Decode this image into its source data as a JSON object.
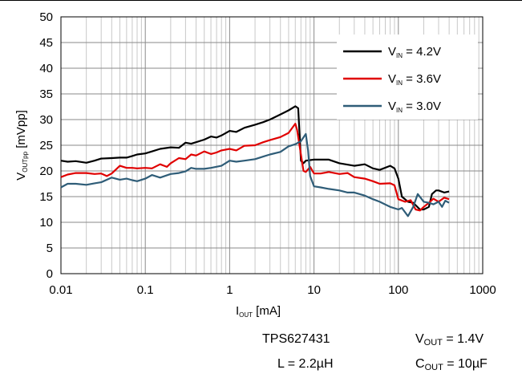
{
  "chart_data": {
    "type": "line",
    "title": "",
    "xlabel": {
      "main": "I",
      "sub": "OUT",
      "unit": " [mA]"
    },
    "ylabel": {
      "main": "V",
      "sub": "OUTpp",
      "unit": " [mVpp]"
    },
    "xscale": "log",
    "xlim": [
      0.01,
      1000
    ],
    "ylim": [
      0,
      50
    ],
    "x_ticks": [
      "0.01",
      "0.1",
      "1",
      "10",
      "100",
      "1000"
    ],
    "y_ticks": [
      "0",
      "5",
      "10",
      "15",
      "20",
      "25",
      "30",
      "35",
      "40",
      "45",
      "50"
    ],
    "grid": true,
    "legend_position": "top-right",
    "series": [
      {
        "name_main": "V",
        "name_sub": "IN",
        "name_rest": " = 4.2V",
        "color": "#000000",
        "points": [
          [
            0.01,
            22.0
          ],
          [
            0.012,
            21.8
          ],
          [
            0.015,
            21.9
          ],
          [
            0.02,
            21.6
          ],
          [
            0.025,
            22.0
          ],
          [
            0.03,
            22.4
          ],
          [
            0.04,
            22.5
          ],
          [
            0.05,
            22.6
          ],
          [
            0.06,
            22.6
          ],
          [
            0.07,
            22.9
          ],
          [
            0.08,
            23.2
          ],
          [
            0.1,
            23.4
          ],
          [
            0.12,
            23.8
          ],
          [
            0.15,
            24.3
          ],
          [
            0.2,
            24.6
          ],
          [
            0.25,
            24.5
          ],
          [
            0.3,
            25.5
          ],
          [
            0.35,
            25.3
          ],
          [
            0.4,
            25.6
          ],
          [
            0.5,
            26.1
          ],
          [
            0.6,
            26.7
          ],
          [
            0.7,
            26.5
          ],
          [
            0.8,
            26.9
          ],
          [
            1.0,
            27.8
          ],
          [
            1.2,
            27.6
          ],
          [
            1.5,
            28.4
          ],
          [
            2.0,
            29.0
          ],
          [
            2.5,
            29.5
          ],
          [
            3.0,
            30.0
          ],
          [
            4.0,
            31.0
          ],
          [
            5.0,
            31.8
          ],
          [
            6.0,
            32.6
          ],
          [
            6.5,
            32.2
          ],
          [
            7.0,
            22.0
          ],
          [
            7.5,
            21.5
          ],
          [
            8.0,
            22.0
          ],
          [
            10,
            22.2
          ],
          [
            15,
            22.2
          ],
          [
            20,
            21.5
          ],
          [
            30,
            21.0
          ],
          [
            40,
            21.3
          ],
          [
            50,
            20.5
          ],
          [
            60,
            20.2
          ],
          [
            80,
            21.0
          ],
          [
            90,
            20.5
          ],
          [
            100,
            18.5
          ],
          [
            110,
            15.0
          ],
          [
            130,
            14.0
          ],
          [
            150,
            13.8
          ],
          [
            180,
            12.5
          ],
          [
            200,
            12.5
          ],
          [
            230,
            13.0
          ],
          [
            250,
            15.5
          ],
          [
            280,
            16.2
          ],
          [
            300,
            16.2
          ],
          [
            350,
            15.8
          ],
          [
            400,
            16.0
          ]
        ]
      },
      {
        "name_main": "V",
        "name_sub": "IN",
        "name_rest": " = 3.6V",
        "color": "#e00000",
        "points": [
          [
            0.01,
            18.8
          ],
          [
            0.012,
            19.3
          ],
          [
            0.015,
            19.6
          ],
          [
            0.02,
            19.6
          ],
          [
            0.025,
            19.4
          ],
          [
            0.03,
            19.5
          ],
          [
            0.035,
            19.0
          ],
          [
            0.04,
            19.5
          ],
          [
            0.05,
            21.0
          ],
          [
            0.06,
            20.6
          ],
          [
            0.07,
            20.6
          ],
          [
            0.08,
            20.5
          ],
          [
            0.1,
            20.6
          ],
          [
            0.12,
            20.5
          ],
          [
            0.15,
            21.3
          ],
          [
            0.18,
            20.8
          ],
          [
            0.2,
            21.5
          ],
          [
            0.25,
            22.5
          ],
          [
            0.3,
            22.3
          ],
          [
            0.35,
            23.2
          ],
          [
            0.4,
            23.0
          ],
          [
            0.5,
            23.8
          ],
          [
            0.6,
            23.3
          ],
          [
            0.7,
            23.6
          ],
          [
            0.8,
            24.0
          ],
          [
            1.0,
            24.3
          ],
          [
            1.2,
            24.0
          ],
          [
            1.5,
            24.9
          ],
          [
            2.0,
            25.0
          ],
          [
            2.5,
            25.6
          ],
          [
            3.0,
            26.0
          ],
          [
            4.0,
            26.6
          ],
          [
            5.0,
            27.4
          ],
          [
            6.0,
            29.2
          ],
          [
            6.3,
            28.0
          ],
          [
            6.8,
            24.5
          ],
          [
            7.5,
            20.0
          ],
          [
            8.0,
            19.8
          ],
          [
            9,
            20.8
          ],
          [
            10,
            19.5
          ],
          [
            12,
            19.5
          ],
          [
            15,
            19.8
          ],
          [
            20,
            19.4
          ],
          [
            25,
            19.6
          ],
          [
            30,
            18.8
          ],
          [
            40,
            18.5
          ],
          [
            50,
            18.0
          ],
          [
            60,
            17.5
          ],
          [
            80,
            17.6
          ],
          [
            90,
            17.2
          ],
          [
            100,
            14.5
          ],
          [
            120,
            14.0
          ],
          [
            140,
            14.3
          ],
          [
            160,
            12.5
          ],
          [
            180,
            12.3
          ],
          [
            200,
            13.0
          ],
          [
            230,
            13.8
          ],
          [
            260,
            14.6
          ],
          [
            300,
            14.0
          ],
          [
            350,
            14.8
          ],
          [
            400,
            14.5
          ]
        ]
      },
      {
        "name_main": "V",
        "name_sub": "IN",
        "name_rest": " = 3.0V",
        "color": "#2f5d78",
        "points": [
          [
            0.01,
            16.8
          ],
          [
            0.012,
            17.5
          ],
          [
            0.015,
            17.5
          ],
          [
            0.02,
            17.3
          ],
          [
            0.025,
            17.6
          ],
          [
            0.03,
            17.8
          ],
          [
            0.04,
            18.7
          ],
          [
            0.05,
            18.3
          ],
          [
            0.06,
            18.5
          ],
          [
            0.07,
            18.2
          ],
          [
            0.08,
            18.0
          ],
          [
            0.1,
            18.5
          ],
          [
            0.12,
            19.2
          ],
          [
            0.15,
            18.7
          ],
          [
            0.2,
            19.4
          ],
          [
            0.25,
            19.6
          ],
          [
            0.3,
            19.9
          ],
          [
            0.35,
            20.6
          ],
          [
            0.4,
            20.4
          ],
          [
            0.5,
            20.4
          ],
          [
            0.6,
            20.6
          ],
          [
            0.8,
            21.0
          ],
          [
            1.0,
            22.0
          ],
          [
            1.2,
            21.8
          ],
          [
            1.5,
            22.0
          ],
          [
            2.0,
            22.3
          ],
          [
            2.5,
            22.8
          ],
          [
            3.0,
            23.2
          ],
          [
            4.0,
            23.7
          ],
          [
            5.0,
            24.8
          ],
          [
            6.0,
            25.2
          ],
          [
            7.0,
            25.8
          ],
          [
            8.0,
            27.2
          ],
          [
            8.5,
            24.0
          ],
          [
            9.0,
            19.0
          ],
          [
            10,
            17.0
          ],
          [
            12,
            16.8
          ],
          [
            15,
            16.5
          ],
          [
            20,
            16.2
          ],
          [
            25,
            15.8
          ],
          [
            30,
            15.8
          ],
          [
            40,
            15.2
          ],
          [
            50,
            14.5
          ],
          [
            60,
            14.0
          ],
          [
            80,
            13.0
          ],
          [
            100,
            12.5
          ],
          [
            110,
            12.8
          ],
          [
            130,
            11.2
          ],
          [
            150,
            13.0
          ],
          [
            170,
            15.5
          ],
          [
            200,
            14.0
          ],
          [
            230,
            13.8
          ],
          [
            260,
            13.5
          ],
          [
            300,
            14.0
          ],
          [
            330,
            13.0
          ],
          [
            360,
            14.2
          ],
          [
            400,
            13.8
          ]
        ]
      }
    ]
  },
  "annotations": {
    "device": "TPS627431",
    "inductor": "L = 2.2µH",
    "vout_main": "V",
    "vout_sub": "OUT",
    "vout_rest": " = 1.4V",
    "cout_main": "C",
    "cout_sub": "OUT",
    "cout_rest": " = 10µF"
  }
}
